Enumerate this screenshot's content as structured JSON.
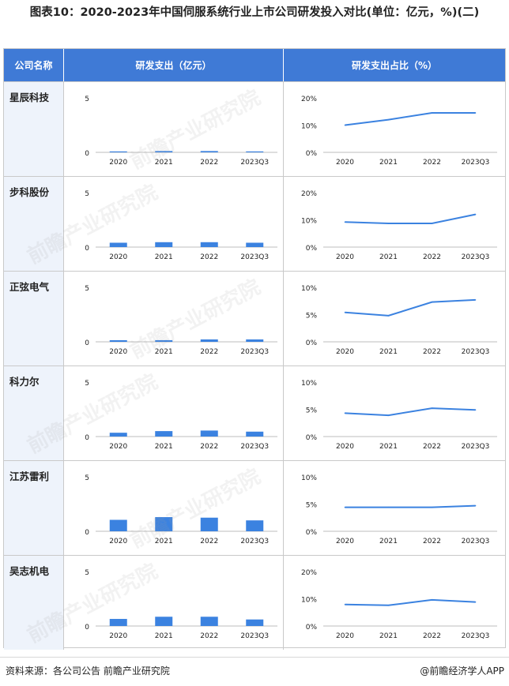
{
  "title": "图表10：2020-2023年中国伺服系统行业上市公司研发投入对比(单位：亿元，%)(二)",
  "headers": {
    "company": "公司名称",
    "spend": "研发支出（亿元）",
    "ratio": "研发支出占比（%）"
  },
  "watermark": "前瞻产业研究院",
  "footer": {
    "source": "资料来源：各公司公告 前瞻产业研究院",
    "brand": "@前瞻经济学人APP"
  },
  "colors": {
    "header_bg": "#3f7ad6",
    "bar": "#3b82e0",
    "line": "#3b82e0",
    "name_bg": "#eef3fb"
  },
  "chart_data": [
    {
      "company": "星辰科技",
      "type": "bar",
      "categories": [
        "2020",
        "2021",
        "2022",
        "2023Q3"
      ],
      "values": [
        0.05,
        0.12,
        0.12,
        0.06
      ],
      "ylim": [
        0,
        5
      ],
      "yticks": [
        "0",
        "5"
      ]
    },
    {
      "company": "星辰科技",
      "type": "line",
      "categories": [
        "2020",
        "2021",
        "2022",
        "2023Q3"
      ],
      "values": [
        10,
        12,
        14.5,
        14.5
      ],
      "ylim": [
        0,
        20
      ],
      "yticks": [
        "0%",
        "10%",
        "20%"
      ]
    },
    {
      "company": "步科股份",
      "type": "bar",
      "categories": [
        "2020",
        "2021",
        "2022",
        "2023Q3"
      ],
      "values": [
        0.4,
        0.45,
        0.45,
        0.4
      ],
      "ylim": [
        0,
        5
      ],
      "yticks": [
        "0",
        "5"
      ]
    },
    {
      "company": "步科股份",
      "type": "line",
      "categories": [
        "2020",
        "2021",
        "2022",
        "2023Q3"
      ],
      "values": [
        9.2,
        8.7,
        8.7,
        12
      ],
      "ylim": [
        0,
        20
      ],
      "yticks": [
        "0%",
        "10%",
        "20%"
      ]
    },
    {
      "company": "正弦电气",
      "type": "bar",
      "categories": [
        "2020",
        "2021",
        "2022",
        "2023Q3"
      ],
      "values": [
        0.15,
        0.15,
        0.22,
        0.22
      ],
      "ylim": [
        0,
        5
      ],
      "yticks": [
        "0",
        "5"
      ]
    },
    {
      "company": "正弦电气",
      "type": "line",
      "categories": [
        "2020",
        "2021",
        "2022",
        "2023Q3"
      ],
      "values": [
        5.4,
        4.8,
        7.3,
        7.7
      ],
      "ylim": [
        0,
        10
      ],
      "yticks": [
        "0%",
        "5%",
        "10%"
      ]
    },
    {
      "company": "科力尔",
      "type": "bar",
      "categories": [
        "2020",
        "2021",
        "2022",
        "2023Q3"
      ],
      "values": [
        0.35,
        0.5,
        0.55,
        0.45
      ],
      "ylim": [
        0,
        5
      ],
      "yticks": [
        "0",
        "5"
      ]
    },
    {
      "company": "科力尔",
      "type": "line",
      "categories": [
        "2020",
        "2021",
        "2022",
        "2023Q3"
      ],
      "values": [
        4.3,
        3.9,
        5.2,
        4.9
      ],
      "ylim": [
        0,
        10
      ],
      "yticks": [
        "0%",
        "5%",
        "10%"
      ]
    },
    {
      "company": "江苏雷利",
      "type": "bar",
      "categories": [
        "2020",
        "2021",
        "2022",
        "2023Q3"
      ],
      "values": [
        1.05,
        1.3,
        1.25,
        1.0
      ],
      "ylim": [
        0,
        5
      ],
      "yticks": [
        "0",
        "5"
      ]
    },
    {
      "company": "江苏雷利",
      "type": "line",
      "categories": [
        "2020",
        "2021",
        "2022",
        "2023Q3"
      ],
      "values": [
        4.4,
        4.4,
        4.4,
        4.7
      ],
      "ylim": [
        0,
        10
      ],
      "yticks": [
        "0%",
        "5%",
        "10%"
      ]
    },
    {
      "company": "吴志机电",
      "type": "bar",
      "categories": [
        "2020",
        "2021",
        "2022",
        "2023Q3"
      ],
      "values": [
        0.65,
        0.85,
        0.85,
        0.6
      ],
      "ylim": [
        0,
        5
      ],
      "yticks": [
        "0",
        "5"
      ]
    },
    {
      "company": "吴志机电",
      "type": "line",
      "categories": [
        "2020",
        "2021",
        "2022",
        "2023Q3"
      ],
      "values": [
        7.9,
        7.6,
        9.6,
        8.8
      ],
      "ylim": [
        0,
        20
      ],
      "yticks": [
        "0%",
        "10%",
        "20%"
      ]
    }
  ]
}
